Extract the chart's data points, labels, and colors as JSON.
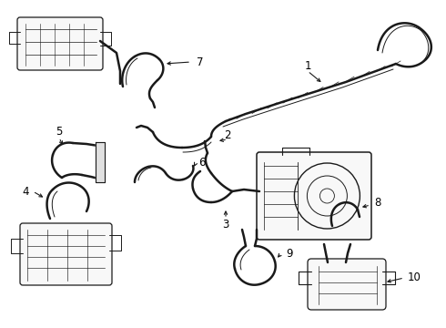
{
  "background_color": "#ffffff",
  "line_color": "#1a1a1a",
  "figsize": [
    4.9,
    3.6
  ],
  "dpi": 100,
  "lw": 1.3,
  "lw_hose": 1.8,
  "lw_thin": 0.7
}
